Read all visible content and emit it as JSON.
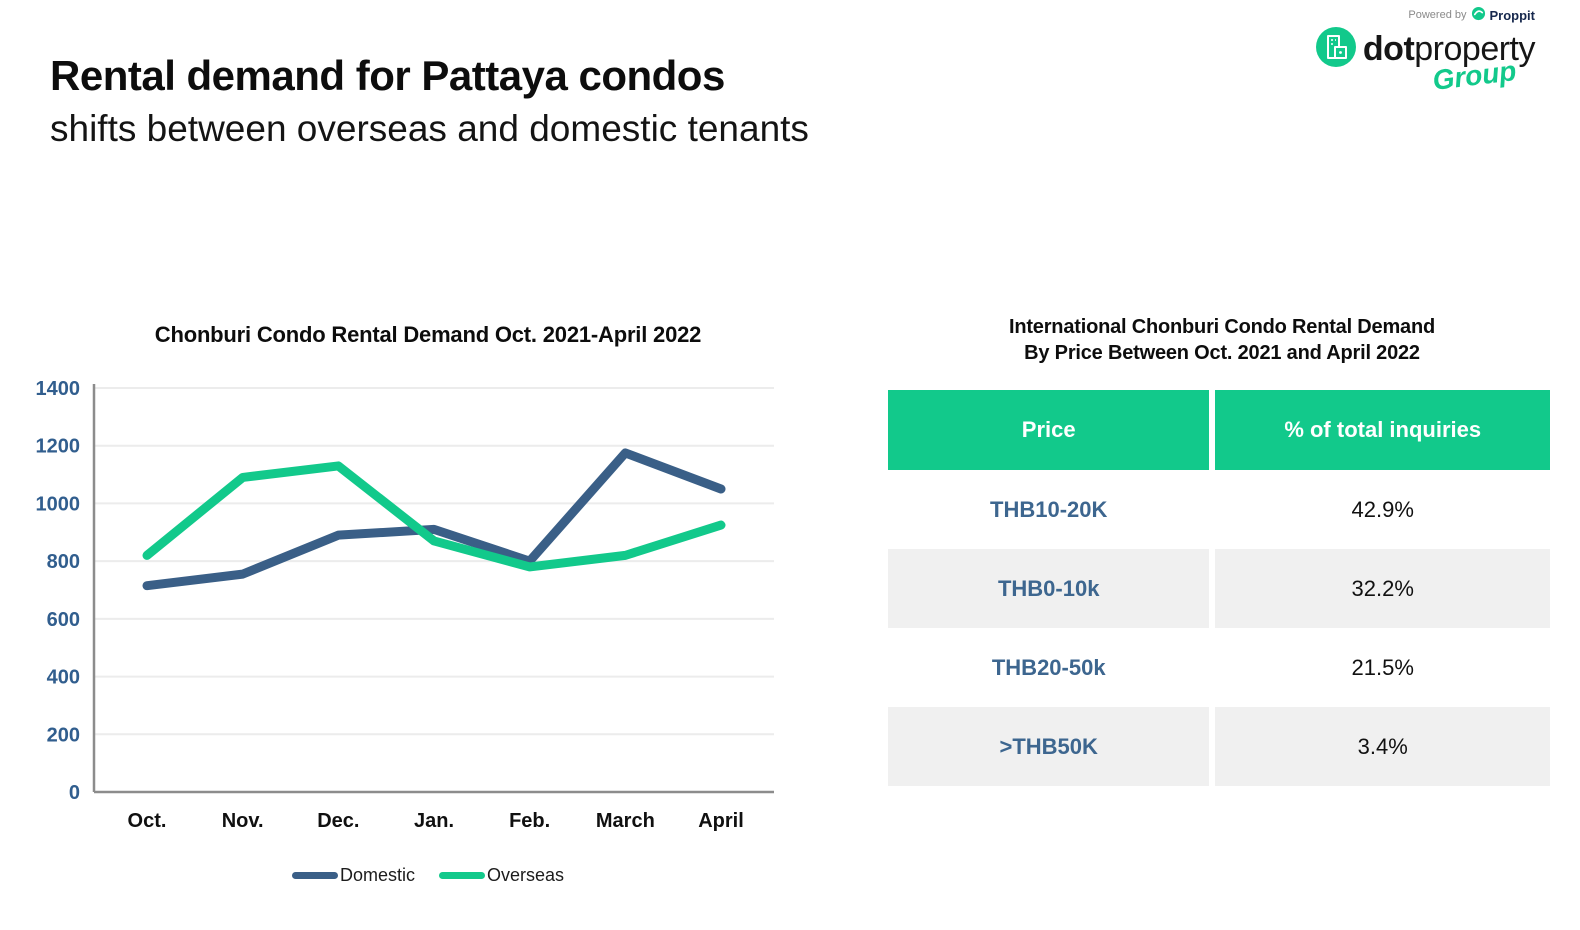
{
  "header": {
    "title_line1": "Rental demand for Pattaya condos",
    "title_line2": "shifts between overseas and domestic tenants"
  },
  "logo": {
    "powered_by": "Powered by",
    "proppit": "Proppit",
    "brand_dot": "dot",
    "brand_property": "property",
    "brand_group": "Group"
  },
  "chart_data": {
    "type": "line",
    "title": "Chonburi Condo Rental Demand Oct. 2021-April 2022",
    "categories": [
      "Oct.",
      "Nov.",
      "Dec.",
      "Jan.",
      "Feb.",
      "March",
      "April"
    ],
    "series": [
      {
        "name": "Domestic",
        "color": "#3a5f87",
        "values": [
          715,
          755,
          890,
          910,
          800,
          1175,
          1050
        ]
      },
      {
        "name": "Overseas",
        "color": "#12c98b",
        "values": [
          820,
          1090,
          1130,
          870,
          780,
          820,
          925
        ]
      }
    ],
    "ylim": [
      0,
      1400
    ],
    "ytick_step": 200,
    "grid": true,
    "legend_position": "bottom",
    "colors": {
      "ytick_label": "#315e8e",
      "xtick_label": "#101010",
      "gridline": "#ececec",
      "axis": "#8c8c8c"
    }
  },
  "table": {
    "title_line1": "International Chonburi Condo Rental Demand",
    "title_line2": "By Price Between Oct. 2021 and April 2022",
    "columns": [
      "Price",
      "% of total inquiries"
    ],
    "header_bg": "#12c98b",
    "rows": [
      {
        "price": "THB10-20K",
        "pct": "42.9%"
      },
      {
        "price": "THB0-10k",
        "pct": "32.2%"
      },
      {
        "price": "THB20-50k",
        "pct": "21.5%"
      },
      {
        "price": ">THB50K",
        "pct": "3.4%"
      }
    ]
  }
}
